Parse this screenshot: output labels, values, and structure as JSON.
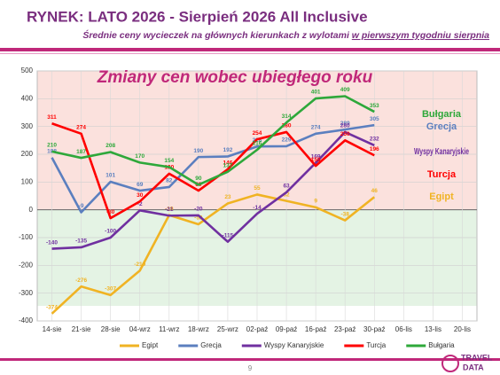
{
  "header": {
    "title": "RYNEK: LATO 2026 - Sierpień 2026 All Inclusive",
    "subtitle": "Średnie ceny wycieczek na głównych kierunkach z wylotami",
    "subtitle_underlined": "w pierwszym tygodniu sierpnia"
  },
  "chart_data": {
    "type": "line",
    "title": "Zmiany cen wobec ubiegłego roku",
    "categories": [
      "14-sie",
      "21-sie",
      "28-sie",
      "04-wrz",
      "11-wrz",
      "18-wrz",
      "25-wrz",
      "02-paź",
      "09-paź",
      "16-paź",
      "23-paź",
      "30-paź",
      "06-lis",
      "13-lis",
      "20-lis"
    ],
    "series": [
      {
        "name": "Egipt",
        "color": "#f0b323",
        "values": [
          -374,
          -276,
          -307,
          -219,
          -19,
          -52,
          23,
          55,
          32,
          9,
          -38,
          46,
          null,
          null,
          null
        ]
      },
      {
        "name": "Grecja",
        "color": "#5b7fbf",
        "values": [
          188,
          -9,
          101,
          69,
          82,
          190,
          192,
          228,
          229,
          274,
          289,
          305,
          null,
          null,
          null
        ]
      },
      {
        "name": "Wyspy Kanaryjskie",
        "color": "#7030a0",
        "values": [
          -140,
          -135,
          -100,
          -2,
          -21,
          -20,
          -115,
          -14,
          63,
          169,
          280,
          232,
          null,
          null,
          null
        ]
      },
      {
        "name": "Turcja",
        "color": "#ff0000",
        "values": [
          311,
          274,
          -30,
          30,
          130,
          69,
          146,
          254,
          280,
          158,
          250,
          196,
          null,
          null,
          null
        ]
      },
      {
        "name": "Bułgaria",
        "color": "#2ea83a",
        "values": [
          210,
          187,
          208,
          170,
          154,
          90,
          137,
          216,
          314,
          401,
          409,
          353,
          null,
          null,
          null
        ]
      }
    ],
    "ylim": [
      -400,
      500
    ],
    "yticks": [
      -400,
      -300,
      -200,
      -100,
      0,
      100,
      200,
      300,
      400,
      500
    ],
    "grid": true,
    "legend": "bottom"
  },
  "footer": {
    "page": "9",
    "logo_top": "TRAVEL",
    "logo_bottom": "DATA"
  }
}
